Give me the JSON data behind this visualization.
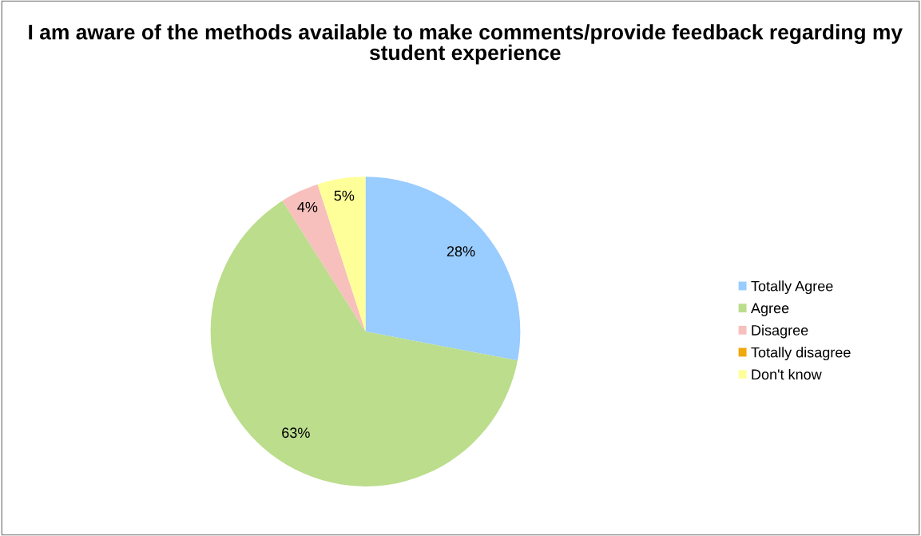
{
  "chart_data": {
    "type": "pie",
    "title": "I am aware of the methods available to make comments/provide feedback regarding my student experience",
    "categories": [
      "Totally Agree",
      "Agree",
      "Disagree",
      "Totally disagree",
      "Don't know"
    ],
    "values": [
      28,
      63,
      4,
      0,
      5
    ],
    "colors": [
      "#99ccff",
      "#bbdd8c",
      "#f7c0bc",
      "#f0a80a",
      "#ffff99"
    ],
    "value_labels": [
      "28%",
      "63%",
      "4%",
      null,
      "5%"
    ],
    "legend": "right"
  }
}
